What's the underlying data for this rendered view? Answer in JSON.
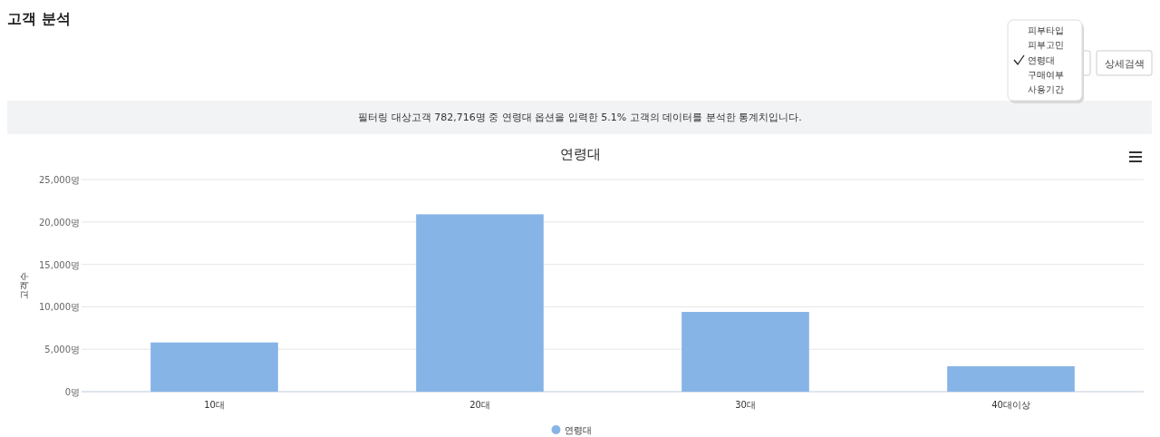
{
  "chart_data": {
    "type": "bar",
    "title": "연령대",
    "ylabel": "고객수",
    "annotations": [
      "고객 분석",
      "상세검색",
      "피부타입",
      "피부고민",
      "연령대",
      "구매여부",
      "사용기간",
      "필터링 대상고객 782,716명 중 연령대 옵션을 입력한 5.1% 고객의 데이터를 분석한 통계치입니다."
    ],
    "categories": [
      "10대",
      "20대",
      "30대",
      "40대이상"
    ],
    "series": [
      {
        "name": "연령대",
        "color": "#87b4e6",
        "values": [
          5800,
          20900,
          9400,
          3000
        ]
      }
    ],
    "ylim": [
      0,
      25000
    ],
    "yticks": [
      {
        "value": 0,
        "label": "0명"
      },
      {
        "value": 5000,
        "label": "5,000명"
      },
      {
        "value": 10000,
        "label": "10,000명"
      },
      {
        "value": 15000,
        "label": "15,000명"
      },
      {
        "value": 20000,
        "label": "20,000명"
      },
      {
        "value": 25000,
        "label": "25,000명"
      }
    ],
    "grid": "y",
    "legend": "bottom"
  }
}
